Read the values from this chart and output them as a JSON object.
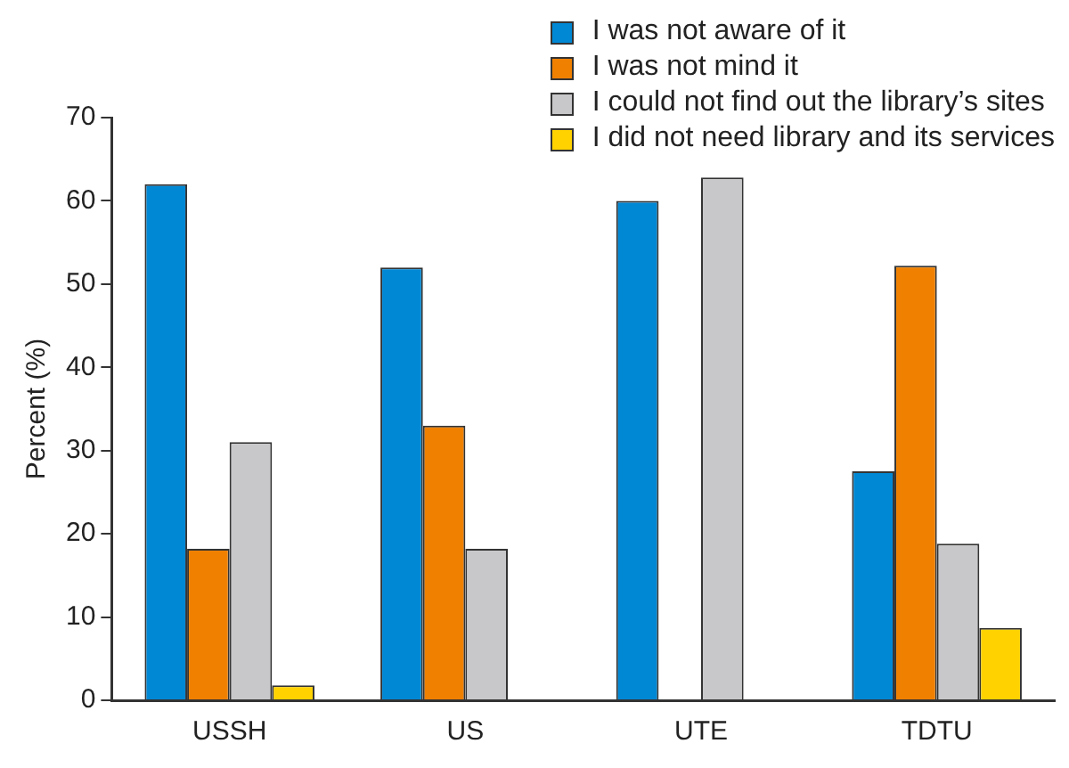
{
  "chart_data": {
    "type": "bar",
    "ylabel": "Percent (%)",
    "categories": [
      "USSH",
      "US",
      "UTE",
      "TDTU"
    ],
    "series": [
      {
        "name": "I was not aware of it",
        "color": "#0088d5",
        "values": [
          62,
          52,
          60,
          27.5
        ]
      },
      {
        "name": "I was not mind it",
        "color": "#f08000",
        "values": [
          18.2,
          33,
          null,
          52.2
        ]
      },
      {
        "name": "I could not find out the library’s sites",
        "color": "#c8c8ca",
        "values": [
          31,
          18.2,
          62.8,
          18.8
        ]
      },
      {
        "name": "I did not need library and its services",
        "color": "#ffd200",
        "values": [
          1.8,
          null,
          null,
          8.7
        ]
      }
    ],
    "ylim": [
      0,
      70
    ],
    "yticks": [
      0,
      10,
      20,
      30,
      40,
      50,
      60,
      70
    ],
    "grid": false,
    "legend": "top right"
  }
}
